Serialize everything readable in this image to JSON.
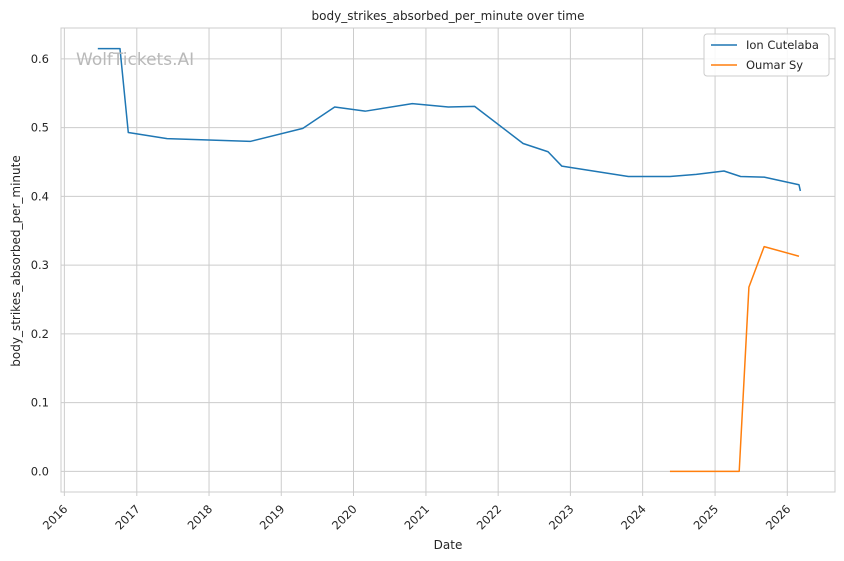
{
  "chart_data": {
    "type": "line",
    "title": "body_strikes_absorbed_per_minute over time",
    "xlabel": "Date",
    "ylabel": "body_strikes_absorbed_per_minute",
    "watermark": "WolfTickets.AI",
    "x_ticks": [
      "2016",
      "2017",
      "2018",
      "2019",
      "2020",
      "2021",
      "2022",
      "2023",
      "2024",
      "2025",
      "2026"
    ],
    "y_ticks": [
      "0.0",
      "0.1",
      "0.2",
      "0.3",
      "0.4",
      "0.5",
      "0.6"
    ],
    "xlim": [
      "2015-12-15",
      "2026-08-30"
    ],
    "ylim": [
      -0.03,
      0.645
    ],
    "grid": true,
    "legend_position": "top-right",
    "series": [
      {
        "name": "Ion Cutelaba",
        "color": "#1f77b4",
        "points": [
          [
            "2016-06-18",
            0.615
          ],
          [
            "2016-10-08",
            0.615
          ],
          [
            "2016-11-19",
            0.493
          ],
          [
            "2017-06-03",
            0.484
          ],
          [
            "2018-07-28",
            0.48
          ],
          [
            "2019-04-20",
            0.499
          ],
          [
            "2019-09-28",
            0.53
          ],
          [
            "2020-02-29",
            0.524
          ],
          [
            "2020-10-24",
            0.535
          ],
          [
            "2021-04-24",
            0.53
          ],
          [
            "2021-09-04",
            0.531
          ],
          [
            "2022-05-07",
            0.477
          ],
          [
            "2022-09-10",
            0.465
          ],
          [
            "2022-11-19",
            0.444
          ],
          [
            "2023-10-21",
            0.429
          ],
          [
            "2024-05-18",
            0.429
          ],
          [
            "2024-09-28",
            0.432
          ],
          [
            "2025-02-15",
            0.437
          ],
          [
            "2025-05-10",
            0.429
          ],
          [
            "2025-09-06",
            0.428
          ],
          [
            "2026-03-01",
            0.417
          ],
          [
            "2026-03-08",
            0.408
          ]
        ]
      },
      {
        "name": "Oumar Sy",
        "color": "#ff7f0e",
        "points": [
          [
            "2024-05-18",
            0.0
          ],
          [
            "2025-05-03",
            0.0
          ],
          [
            "2025-06-21",
            0.268
          ],
          [
            "2025-09-06",
            0.327
          ],
          [
            "2026-03-01",
            0.313
          ]
        ]
      }
    ]
  }
}
